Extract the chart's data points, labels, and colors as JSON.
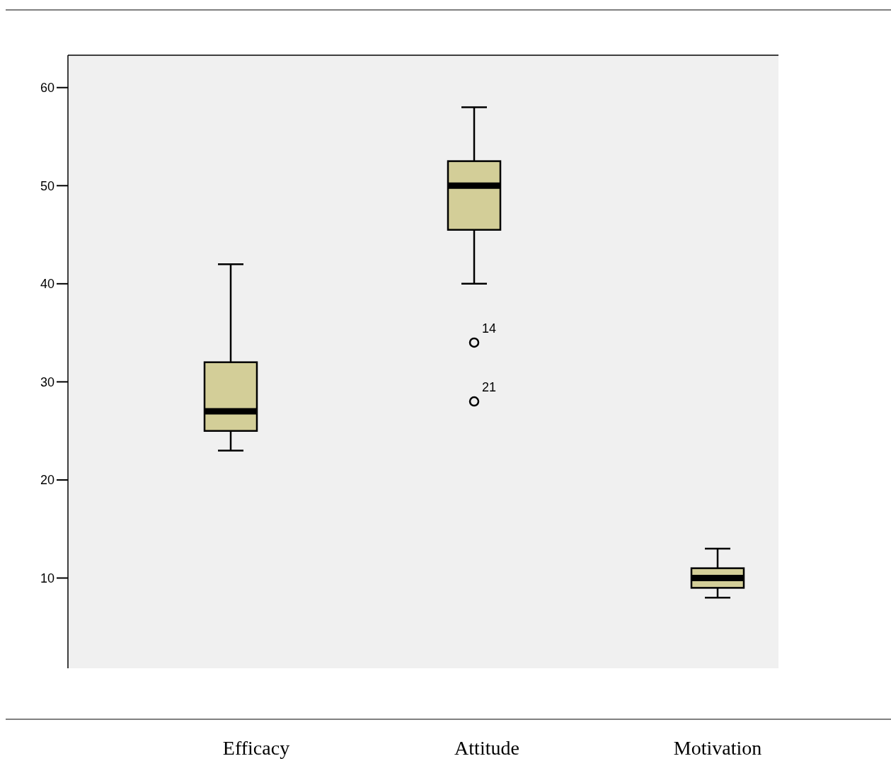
{
  "chart_data": {
    "type": "box",
    "categories": [
      "Efficacy",
      "Attitude",
      "Motivation"
    ],
    "color": "#d3ce98",
    "boxes": [
      {
        "low": 23,
        "q1": 25,
        "median": 27,
        "q3": 32,
        "high": 42
      },
      {
        "low": 40,
        "q1": 45.5,
        "median": 50,
        "q3": 52.5,
        "high": 58,
        "outliers": [
          34,
          28
        ]
      },
      {
        "low": 8,
        "q1": 9,
        "median": 10,
        "q3": 11,
        "high": 13
      }
    ],
    "ylim": [
      0.8,
      63.3
    ],
    "yticks": [
      10,
      20,
      30,
      40,
      50,
      60
    ],
    "annotations": [
      "14",
      "21"
    ],
    "grid": false
  }
}
